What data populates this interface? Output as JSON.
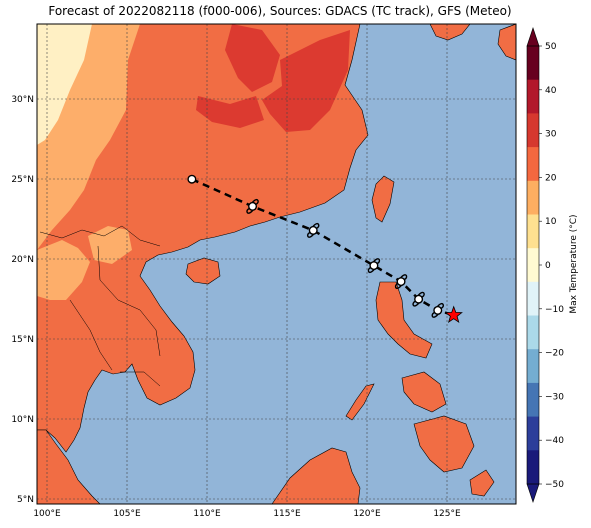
{
  "title": "Forecast of 2022082118 (f000-006), Sources: GDACS (TC track), GFS (Meteo)",
  "colorbar": {
    "label": "Max Temperature (°C)",
    "ticks": [
      "50",
      "40",
      "30",
      "20",
      "10",
      "0",
      "−10",
      "−20",
      "−30",
      "−40",
      "−50"
    ],
    "colors": [
      "#67001f",
      "#b2182b",
      "#d6382f",
      "#f4683f",
      "#fdae61",
      "#fee090",
      "#fffad2",
      "#e0f3f8",
      "#abd9e9",
      "#74add1",
      "#4575b4",
      "#2c3e9a",
      "#1a1a7a"
    ]
  },
  "axes": {
    "lon_ticks": [
      "100°E",
      "105°E",
      "110°E",
      "115°E",
      "120°E",
      "125°E"
    ],
    "lat_ticks": [
      "30°N",
      "25°N",
      "20°N",
      "15°N",
      "10°N",
      "5°N"
    ],
    "lon_range": [
      99.5,
      129.5
    ],
    "lat_range": [
      4.7,
      34.7
    ]
  },
  "track": {
    "points": [
      {
        "lon": 109.2,
        "lat": 25.0,
        "kind": "past"
      },
      {
        "lon": 113.0,
        "lat": 23.3,
        "kind": "forecast"
      },
      {
        "lon": 116.8,
        "lat": 21.8,
        "kind": "forecast"
      },
      {
        "lon": 120.6,
        "lat": 19.6,
        "kind": "forecast"
      },
      {
        "lon": 122.3,
        "lat": 18.6,
        "kind": "forecast"
      },
      {
        "lon": 123.4,
        "lat": 17.5,
        "kind": "forecast"
      },
      {
        "lon": 124.6,
        "lat": 16.8,
        "kind": "forecast"
      }
    ],
    "current": {
      "lon": 125.6,
      "lat": 16.5
    }
  },
  "colors": {
    "sea": "#92b5d8",
    "land": "#f16d44",
    "land_hot": "#dc3a30",
    "land_mild": "#fdae6a",
    "land_cool": "#fff0c4",
    "star": "#ff0000"
  }
}
